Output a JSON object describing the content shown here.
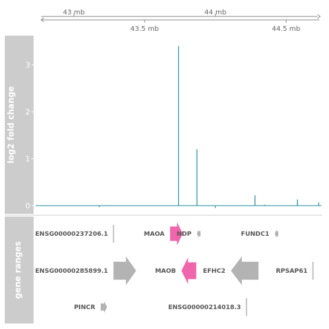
{
  "chart_data": {
    "type": "genome-track",
    "genome_axis": {
      "top_ticks": [
        {
          "pos": 43.0,
          "label": "43 mb"
        },
        {
          "pos": 44.0,
          "label": "44 mb"
        }
      ],
      "bottom_ticks": [
        {
          "pos": 43.5,
          "label": "43.5 mb"
        },
        {
          "pos": 44.5,
          "label": "44.5 mb"
        }
      ],
      "xlim": [
        42.73,
        44.75
      ]
    },
    "tracks": {
      "fold_change": {
        "label": "log2 fold change",
        "ylim": [
          -0.08,
          3.55
        ],
        "yticks": [
          0,
          1,
          2,
          3
        ],
        "color": "#1e8a9a",
        "bars": [
          {
            "x": 43.18,
            "y": -0.03
          },
          {
            "x": 43.74,
            "y": 3.4
          },
          {
            "x": 43.87,
            "y": 1.2
          },
          {
            "x": 44.0,
            "y": -0.05
          },
          {
            "x": 44.28,
            "y": 0.22
          },
          {
            "x": 44.35,
            "y": 0.02
          },
          {
            "x": 44.58,
            "y": 0.13
          },
          {
            "x": 44.73,
            "y": 0.07
          }
        ]
      },
      "gene_ranges": {
        "label": "gene ranges",
        "genes": [
          {
            "name": "ENSG00000237206.1",
            "start": 43.28,
            "end": 43.285,
            "strand": "-",
            "row": 0,
            "highlight": false
          },
          {
            "name": "MAOA",
            "start": 43.68,
            "end": 43.77,
            "strand": "+",
            "row": 0,
            "highlight": true
          },
          {
            "name": "NDP",
            "start": 43.87,
            "end": 43.895,
            "strand": "-",
            "row": 0,
            "highlight": false
          },
          {
            "name": "FUNDC1",
            "start": 44.42,
            "end": 44.445,
            "strand": "-",
            "row": 0,
            "highlight": false
          },
          {
            "name": "ENSG00000285899.1",
            "start": 43.28,
            "end": 43.44,
            "strand": "+",
            "row": 1,
            "highlight": false
          },
          {
            "name": "MAOB",
            "start": 43.76,
            "end": 43.865,
            "strand": "-",
            "row": 1,
            "highlight": true
          },
          {
            "name": "EFHC2",
            "start": 44.11,
            "end": 44.305,
            "strand": "-",
            "row": 1,
            "highlight": false
          },
          {
            "name": "RPSAP61",
            "start": 44.69,
            "end": 44.695,
            "strand": "-",
            "row": 1,
            "highlight": false
          },
          {
            "name": "PINCR",
            "start": 43.19,
            "end": 43.235,
            "strand": "+",
            "row": 2,
            "highlight": false
          },
          {
            "name": "ENSG00000214018.3",
            "start": 44.22,
            "end": 44.225,
            "strand": "-",
            "row": 2,
            "highlight": false
          }
        ],
        "colors": {
          "default": "#b3b3b3",
          "highlight": "#f066ac",
          "label": "#555555"
        }
      }
    }
  }
}
